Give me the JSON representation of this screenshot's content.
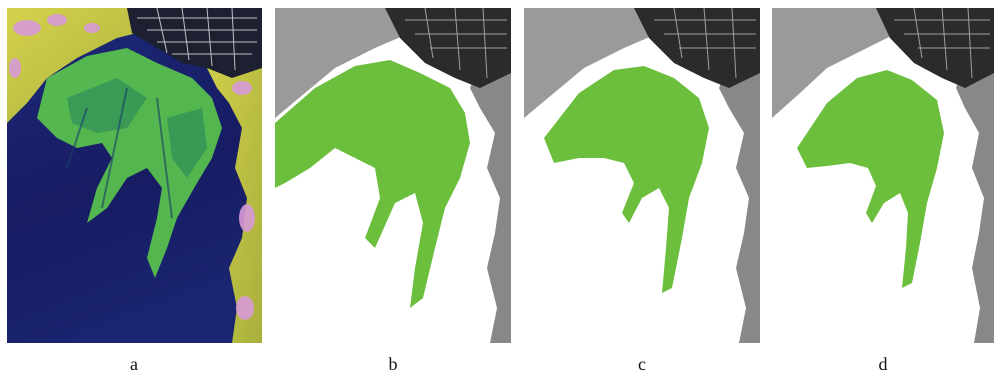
{
  "figure": {
    "panels": [
      {
        "id": "a",
        "label": "a",
        "kind": "false-color-satellite-image"
      },
      {
        "id": "b",
        "label": "b",
        "kind": "classification-map"
      },
      {
        "id": "c",
        "label": "c",
        "kind": "classification-map"
      },
      {
        "id": "d",
        "label": "d",
        "kind": "classification-map"
      }
    ],
    "colors": {
      "water_dark": "#1a1f6b",
      "algae_green": "#5fd14a",
      "land_yellow": "#c9c846",
      "land_pink": "#d79ad6",
      "classified_green": "#6cbf3c",
      "background_white": "#ffffff",
      "land_gray": "#8a8a8a",
      "urban_dark": "#2a2a2a"
    }
  }
}
